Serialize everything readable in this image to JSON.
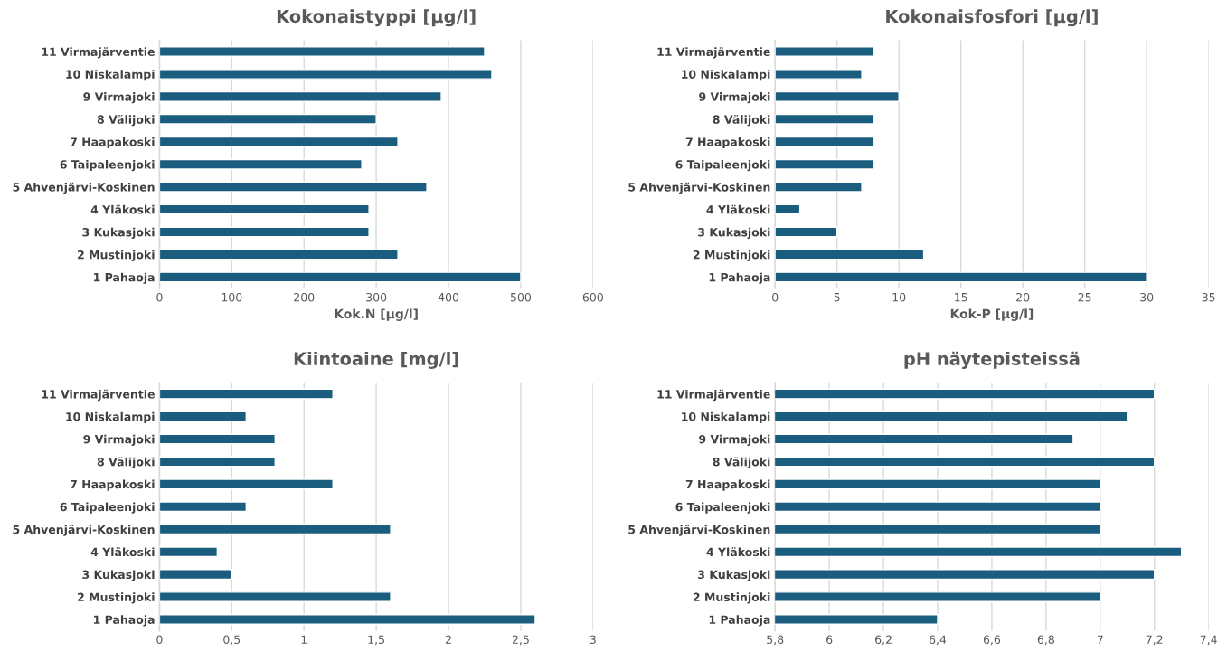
{
  "chart_data": [
    {
      "type": "bar",
      "orientation": "horizontal",
      "title": "Kokonaistyppi [µg/l]",
      "xlabel": "Kok.N [µg/l]",
      "categories": [
        "11 Virmajärventie",
        "10 Niskalampi",
        "9 Virmajoki",
        "8 Välijoki",
        "7 Haapakoski",
        "6 Taipaleenjoki",
        "5 Ahvenjärvi-Koskinen",
        "4 Yläkoski",
        "3 Kukasjoki",
        "2 Mustinjoki",
        "1 Pahaoja"
      ],
      "values": [
        450,
        460,
        390,
        300,
        330,
        280,
        370,
        290,
        290,
        330,
        500
      ],
      "color": "#1b5d7e",
      "xlim": [
        0,
        600
      ],
      "xticks": [
        0,
        100,
        200,
        300,
        400,
        500,
        600
      ],
      "grid": "x"
    },
    {
      "type": "bar",
      "orientation": "horizontal",
      "title": "Kokonaisfosfori [µg/l]",
      "xlabel": "Kok-P [µg/l]",
      "categories": [
        "11 Virmajärventie",
        "10 Niskalampi",
        "9 Virmajoki",
        "8 Välijoki",
        "7 Haapakoski",
        "6 Taipaleenjoki",
        "5 Ahvenjärvi-Koskinen",
        "4 Yläkoski",
        "3 Kukasjoki",
        "2 Mustinjoki",
        "1 Pahaoja"
      ],
      "values": [
        8,
        7,
        10,
        8,
        8,
        8,
        7,
        2,
        5,
        12,
        30
      ],
      "color": "#1b5d7e",
      "xlim": [
        0,
        35
      ],
      "xticks": [
        0,
        5,
        10,
        15,
        20,
        25,
        30,
        35
      ],
      "grid": "x"
    },
    {
      "type": "bar",
      "orientation": "horizontal",
      "title": "Kiintoaine [mg/l]",
      "categories": [
        "11 Virmajärventie",
        "10 Niskalampi",
        "9 Virmajoki",
        "8 Välijoki",
        "7 Haapakoski",
        "6 Taipaleenjoki",
        "5 Ahvenjärvi-Koskinen",
        "4 Yläkoski",
        "3 Kukasjoki",
        "2 Mustinjoki",
        "1 Pahaoja"
      ],
      "values": [
        1.2,
        0.6,
        0.8,
        0.8,
        1.2,
        0.6,
        1.6,
        0.4,
        0.5,
        1.6,
        2.6
      ],
      "color": "#1b5d7e",
      "xlim": [
        0,
        3
      ],
      "xticks": [
        0,
        {
          "value": 0.5,
          "label": "0,5"
        },
        1,
        {
          "value": 1.5,
          "label": "1,5"
        },
        2,
        {
          "value": 2.5,
          "label": "2,5"
        },
        3
      ],
      "grid": "x"
    },
    {
      "type": "bar",
      "orientation": "horizontal",
      "title": "pH näytepisteissä",
      "categories": [
        "11 Virmajärventie",
        "10 Niskalampi",
        "9 Virmajoki",
        "8 Välijoki",
        "7 Haapakoski",
        "6 Taipaleenjoki",
        "5 Ahvenjärvi-Koskinen",
        "4 Yläkoski",
        "3 Kukasjoki",
        "2 Mustinjoki",
        "1 Pahaoja"
      ],
      "values": [
        7.2,
        7.1,
        6.9,
        7.2,
        7.0,
        7.0,
        7.0,
        7.3,
        7.2,
        7.0,
        6.4
      ],
      "color": "#1b5d7e",
      "xlim": [
        5.8,
        7.4
      ],
      "xticks": [
        {
          "value": 5.8,
          "label": "5,8"
        },
        6,
        {
          "value": 6.2,
          "label": "6,2"
        },
        {
          "value": 6.4,
          "label": "6,4"
        },
        {
          "value": 6.6,
          "label": "6,6"
        },
        {
          "value": 6.8,
          "label": "6,8"
        },
        7,
        {
          "value": 7.2,
          "label": "7,2"
        },
        {
          "value": 7.4,
          "label": "7,4"
        }
      ],
      "grid": "x"
    }
  ]
}
